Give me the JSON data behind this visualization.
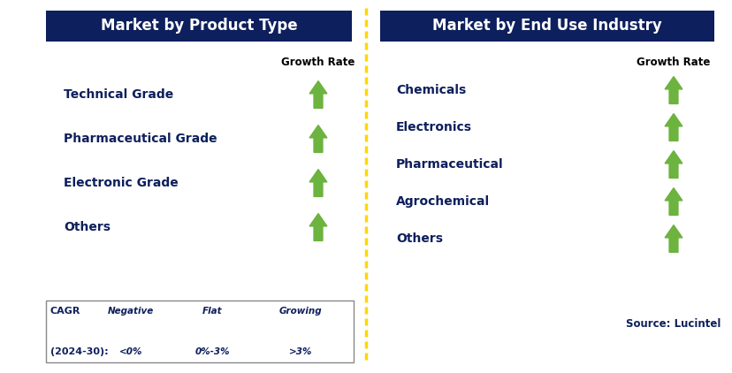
{
  "left_title": "Market by Product Type",
  "right_title": "Market by End Use Industry",
  "left_items": [
    "Technical Grade",
    "Pharmaceutical Grade",
    "Electronic Grade",
    "Others"
  ],
  "right_items": [
    "Chemicals",
    "Electronics",
    "Pharmaceutical",
    "Agrochemical",
    "Others"
  ],
  "growth_rate_label": "Growth Rate",
  "header_bg": "#0d1f5c",
  "header_text_color": "#ffffff",
  "item_text_color": "#0d1f5c",
  "arrow_up_color": "#6db33f",
  "arrow_down_color": "#cc0000",
  "arrow_flat_color": "#ffa500",
  "dashed_line_color": "#ffd700",
  "legend_cagr_label": "CAGR",
  "legend_cagr_years": "(2024-30):",
  "legend_negative_label": "Negative",
  "legend_negative_value": "<0%",
  "legend_flat_label": "Flat",
  "legend_flat_value": "0%-3%",
  "legend_growing_label": "Growing",
  "legend_growing_value": ">3%",
  "source_text": "Source: Lucintel",
  "bg_color": "#ffffff",
  "fig_width": 8.29,
  "fig_height": 4.22,
  "dpi": 100
}
